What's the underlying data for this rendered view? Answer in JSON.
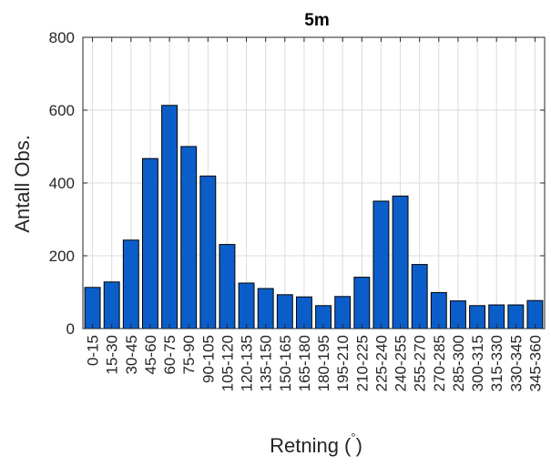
{
  "chart_data": {
    "type": "bar",
    "title": "5m",
    "xlabel": "Retning (",
    "xlabel_unit": "°",
    "xlabel_close": ")",
    "ylabel": "Antall Obs.",
    "ylim": [
      0,
      800
    ],
    "yticks": [
      0,
      200,
      400,
      600,
      800
    ],
    "grid": true,
    "bar_color": "#0b5ec9",
    "categories": [
      "0-15",
      "15-30",
      "30-45",
      "45-60",
      "60-75",
      "75-90",
      "90-105",
      "105-120",
      "120-135",
      "135-150",
      "150-165",
      "165-180",
      "180-195",
      "195-210",
      "210-225",
      "225-240",
      "240-255",
      "255-270",
      "270-285",
      "285-300",
      "300-315",
      "315-330",
      "330-345",
      "345-360"
    ],
    "values": [
      113,
      128,
      243,
      467,
      613,
      500,
      419,
      231,
      125,
      110,
      93,
      87,
      63,
      88,
      141,
      350,
      364,
      176,
      99,
      76,
      63,
      65,
      65,
      77
    ]
  }
}
